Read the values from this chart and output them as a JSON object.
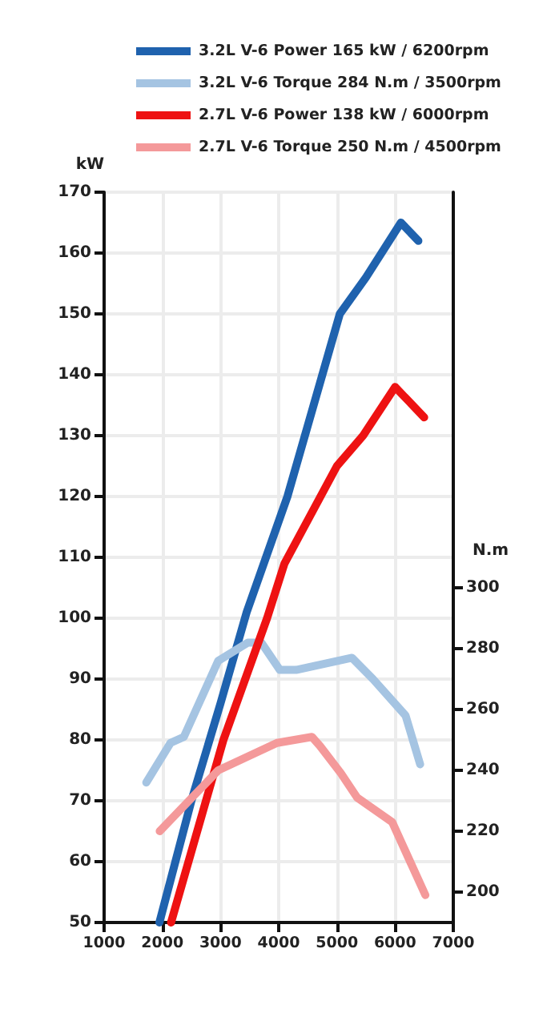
{
  "chart_data": {
    "type": "line",
    "ylabel": "kW",
    "y2label": "N.m",
    "xlim": [
      1000,
      7000
    ],
    "xticks": [
      1000,
      2000,
      3000,
      4000,
      5000,
      6000,
      7000
    ],
    "ylim": [
      50,
      170
    ],
    "yticks": [
      50,
      60,
      70,
      80,
      90,
      100,
      110,
      120,
      130,
      140,
      150,
      160,
      170
    ],
    "y2lim": [
      190,
      430
    ],
    "y2ticks": [
      200,
      220,
      240,
      260,
      280,
      300
    ],
    "grid": true,
    "legend": "top",
    "marker": "none",
    "series": [
      {
        "name": "3.2L V-6 Power 165 kW / 6200rpm",
        "color": "#1f62ae",
        "x": [
          1950,
          2500,
          3000,
          3450,
          4150,
          5050,
          5500,
          6100,
          6400
        ],
        "values": [
          50,
          70,
          86,
          101,
          120,
          150,
          156,
          165,
          162
        ]
      },
      {
        "name": "3.2L V-6 Torque 284 N.m / 3500rpm",
        "color": "#a5c4e2",
        "axis": "y2",
        "x": [
          1725,
          2140,
          2370,
          2960,
          3470,
          3700,
          4020,
          4300,
          5260,
          5620,
          6180,
          6430
        ],
        "values": [
          236,
          249,
          251,
          276,
          282,
          282,
          273,
          273,
          277,
          270,
          258,
          242
        ]
      },
      {
        "name": "2.7L V-6 Power 138 kW / 6000rpm",
        "color": "#ee1212",
        "x": [
          2150,
          3050,
          3800,
          4100,
          5000,
          5450,
          6000,
          6500
        ],
        "values": [
          50,
          80,
          100,
          109,
          125,
          130,
          138,
          133
        ]
      },
      {
        "name": "2.7L V-6 Torque 250 N.m / 4500rpm",
        "color": "#f4999a",
        "axis": "y2",
        "x": [
          1955,
          2960,
          3970,
          4570,
          4710,
          5070,
          5350,
          5950,
          6520
        ],
        "values": [
          220,
          240,
          249,
          251,
          248,
          239,
          231,
          223,
          199
        ]
      }
    ]
  }
}
